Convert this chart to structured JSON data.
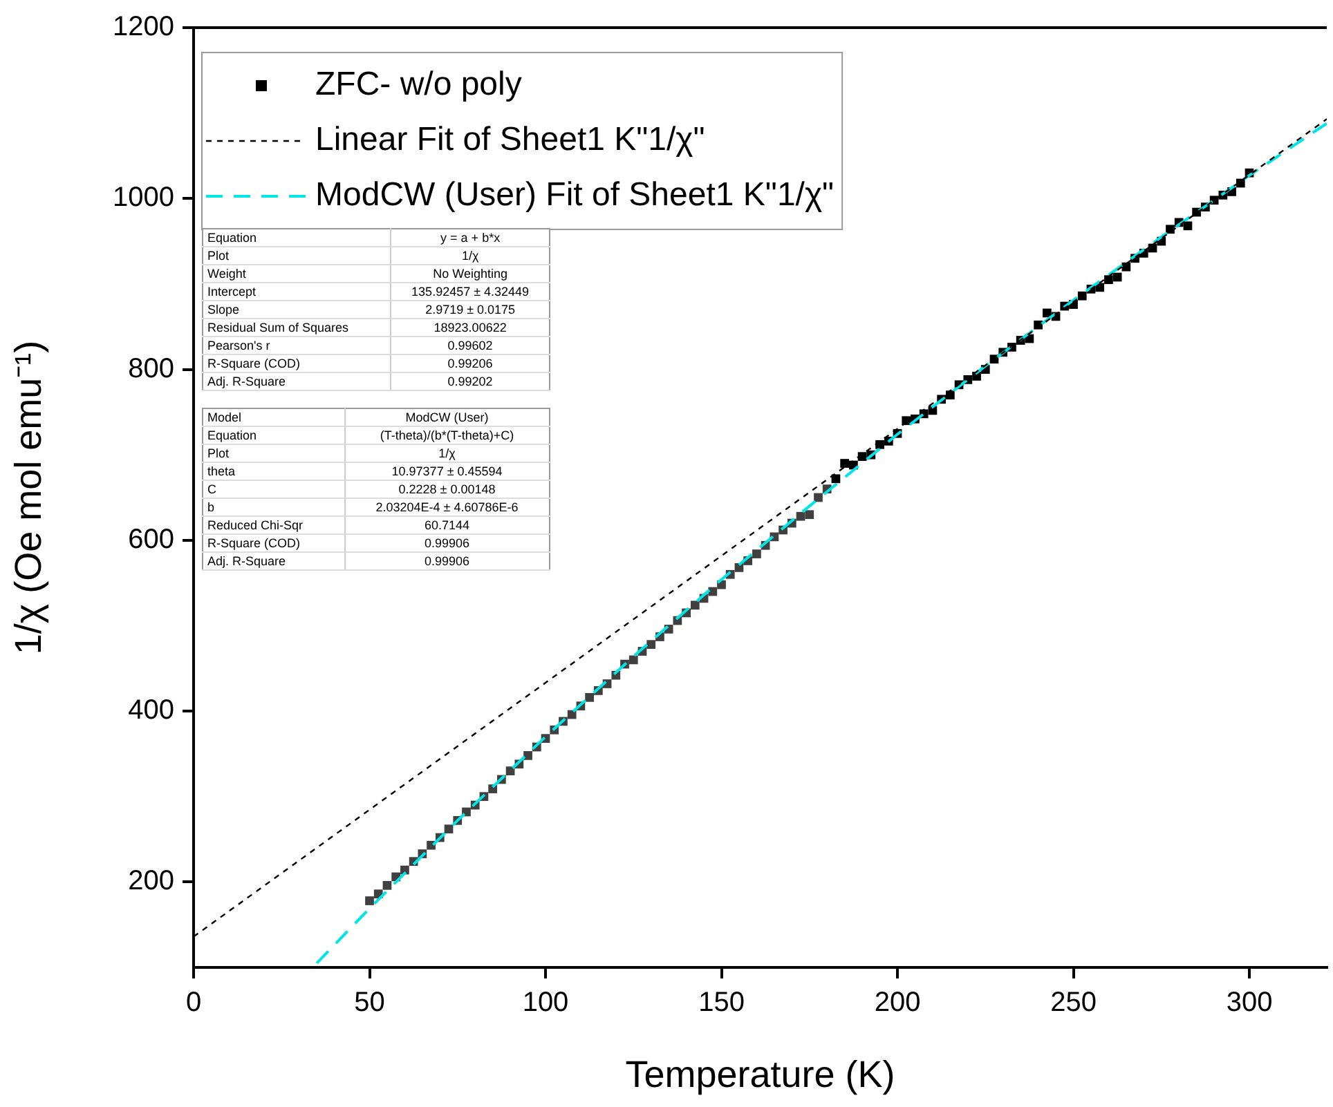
{
  "chart_data": {
    "type": "scatter",
    "xlabel": "Temperature (K)",
    "ylabel": "1/χ (Oe mol emu⁻¹)",
    "xlim": [
      0,
      322
    ],
    "ylim": [
      100,
      1200
    ],
    "xticks": [
      0,
      50,
      100,
      150,
      200,
      250,
      300
    ],
    "yticks": [
      200,
      400,
      600,
      800,
      1000,
      1200
    ],
    "legend": "top left",
    "series": [
      {
        "name": "ZFC- w/o poly",
        "marker": "square",
        "color": "#000000",
        "x": [
          182.5,
          185,
          187.5,
          190,
          192.5,
          195,
          197.5,
          200,
          202.5,
          205,
          207.5,
          210,
          212.5,
          215,
          217.5,
          220,
          222.5,
          225,
          227.5,
          230,
          232.5,
          235,
          237.5,
          240,
          242.5,
          245,
          247.5,
          250,
          252.5,
          255,
          257.5,
          260,
          262.5,
          265,
          267.5,
          270,
          272.5,
          275,
          277.5,
          280,
          282.5,
          285,
          287.5,
          290,
          292.5,
          295,
          297.5,
          300
        ],
        "values": [
          672,
          690,
          688,
          698,
          700,
          712,
          716,
          725,
          740,
          742,
          748,
          752,
          765,
          770,
          782,
          788,
          792,
          800,
          812,
          820,
          826,
          834,
          836,
          852,
          866,
          862,
          874,
          876,
          886,
          894,
          896,
          905,
          908,
          920,
          930,
          936,
          942,
          950,
          964,
          972,
          968,
          984,
          990,
          998,
          1004,
          1008,
          1018,
          1030
        ]
      },
      {
        "marker": "square",
        "color": "#404040",
        "x": [
          50,
          52.5,
          55,
          57.5,
          60,
          62.5,
          65,
          67.5,
          70,
          72.5,
          75,
          77.5,
          80,
          82.5,
          85,
          87.5,
          90,
          92.5,
          95,
          97.5,
          100,
          102.5,
          105,
          107.5,
          110,
          112.5,
          115,
          117.5,
          120,
          122.5,
          125,
          127.5,
          130,
          132.5,
          135,
          137.5,
          140,
          142.5,
          145,
          147.5,
          150,
          152.5,
          155,
          157.5,
          160,
          162.5,
          165,
          167.5,
          170,
          172.5,
          175,
          177.5,
          180
        ],
        "values": [
          178,
          186,
          196,
          206,
          214,
          224,
          233,
          243,
          252,
          262,
          272,
          282,
          290,
          300,
          309,
          320,
          330,
          338,
          348,
          358,
          368,
          378,
          388,
          396,
          406,
          416,
          424,
          432,
          442,
          455,
          460,
          470,
          478,
          487,
          496,
          506,
          515,
          524,
          532,
          540,
          548,
          560,
          568,
          576,
          584,
          594,
          604,
          612,
          620,
          628,
          630,
          650,
          660
        ]
      },
      {
        "name": "Linear Fit of Sheet1 K\"1/χ\"",
        "type": "line",
        "line_style": "dashed",
        "color": "#000000",
        "x": [
          0,
          322
        ],
        "values": [
          136,
          1093
        ]
      },
      {
        "name": "ModCW (User) Fit of Sheet1 K\"1/χ\"",
        "type": "line",
        "line_style": "dashed",
        "color": "#00e5e5",
        "x": [
          35,
          50,
          75,
          100,
          125,
          150,
          175,
          200,
          225,
          250,
          275,
          300,
          322
        ],
        "values": [
          105,
          169,
          272,
          370,
          464,
          554,
          640,
          724,
          804,
          881,
          955,
          1027,
          1088
        ]
      }
    ],
    "annotations": [
      "Equation",
      "y = a + b*x",
      "Plot",
      "1/χ",
      "Weight",
      "No Weighting",
      "Intercept",
      "135.92457 ± 4.32449",
      "Slope",
      "2.9719 ± 0.0175",
      "Residual Sum of Squares",
      "18923.00622",
      "Pearson's r",
      "0.99602",
      "R-Square (COD)",
      "0.99206",
      "Adj. R-Square",
      "0.99202",
      "Model",
      "ModCW (User)",
      "Equation",
      "(T-theta)/(b*(T-theta)+C)",
      "Plot",
      "1/χ",
      "theta",
      "10.97377 ± 0.45594",
      "C",
      "0.2228 ± 0.00148",
      "b",
      "2.03204E-4 ± 4.60786E-6",
      "Reduced Chi-Sqr",
      "60.7144",
      "R-Square (COD)",
      "0.99906",
      "Adj. R-Square",
      "0.99906"
    ]
  }
}
